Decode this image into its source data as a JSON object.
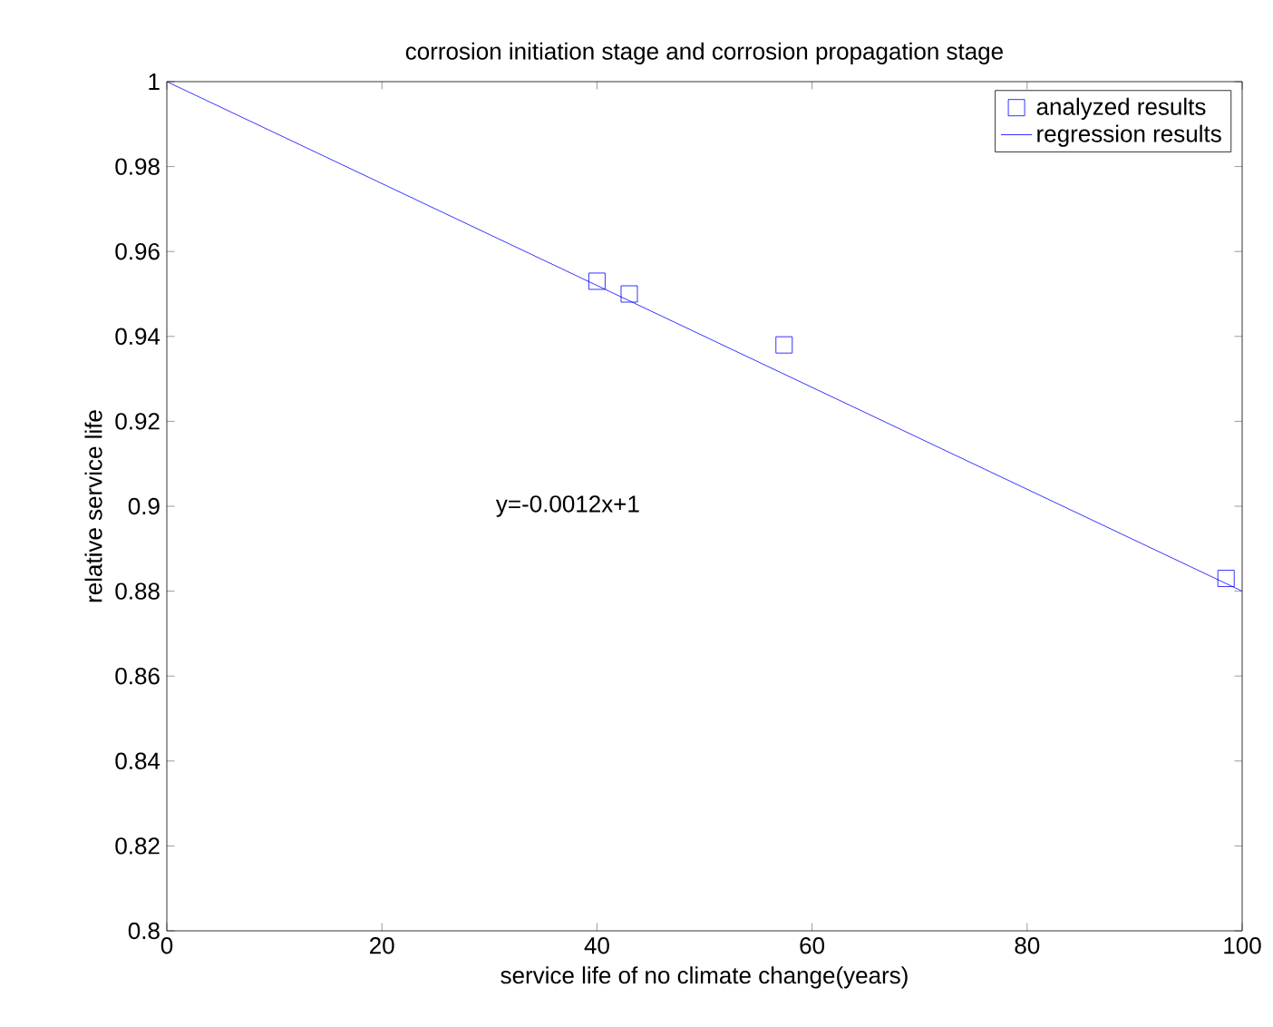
{
  "chart_data": {
    "type": "scatter",
    "title": "corrosion initiation  stage and corrosion propagation  stage",
    "xlabel": "service life of no climate change(years)",
    "ylabel": "relative service life",
    "series": [
      {
        "name": "analyzed results",
        "color": "#0000ff",
        "marker": "square",
        "x": [
          40.0,
          43.0,
          57.4,
          98.5
        ],
        "values": [
          0.953,
          0.95,
          0.938,
          0.883
        ]
      },
      {
        "name": "regression results",
        "type": "line",
        "color": "#0000ff",
        "marker": "none",
        "line_style": "solid",
        "x": [
          0,
          100
        ],
        "values": [
          1,
          0.88
        ]
      }
    ],
    "annotations": [
      "y=-0.0012x+1"
    ],
    "xlim": [
      0,
      100
    ],
    "ylim": [
      0.8,
      1
    ],
    "xticks": [
      0,
      20,
      40,
      60,
      80,
      100
    ],
    "yticks": [
      0.8,
      0.82,
      0.84,
      0.86,
      0.88,
      0.9,
      0.92,
      0.94,
      0.96,
      0.98,
      1
    ],
    "grid": false,
    "legend": "top right"
  }
}
